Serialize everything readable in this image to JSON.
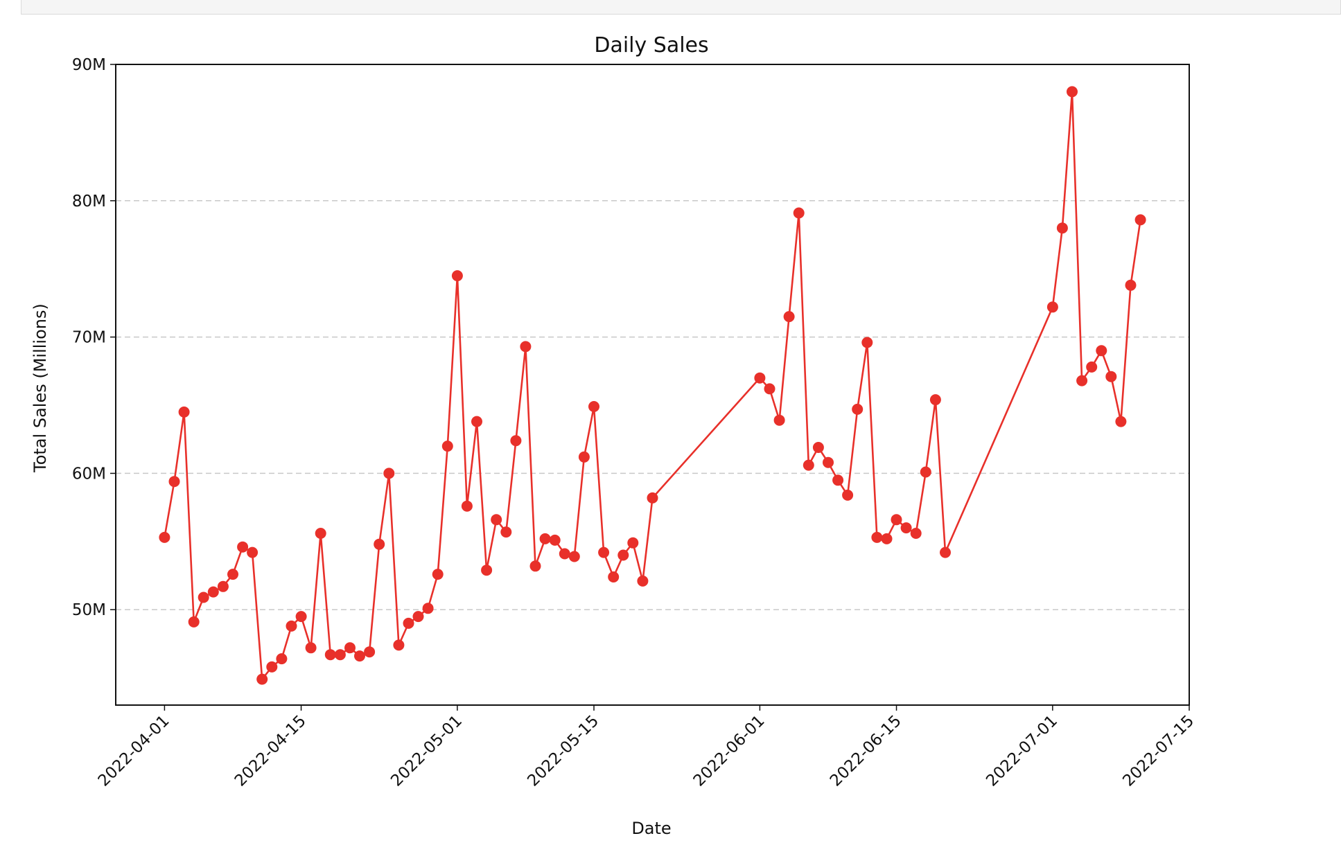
{
  "chart_data": {
    "type": "line",
    "title": "Daily Sales",
    "xlabel": "Date",
    "ylabel": "Total Sales (Millions)",
    "x_range": [
      "2022-03-27",
      "2022-07-15"
    ],
    "ylim": [
      43,
      90
    ],
    "y_ticks": [
      50,
      60,
      70,
      80,
      90
    ],
    "y_tick_labels": [
      "50M",
      "60M",
      "70M",
      "80M",
      "90M"
    ],
    "x_ticks": [
      "2022-04-01",
      "2022-04-15",
      "2022-05-01",
      "2022-05-15",
      "2022-06-01",
      "2022-06-15",
      "2022-07-01",
      "2022-07-15"
    ],
    "grid": "y-dashed",
    "color": "#e8302a",
    "series": [
      {
        "x": [
          "2022-04-01",
          "2022-04-02",
          "2022-04-03",
          "2022-04-04",
          "2022-04-05",
          "2022-04-06",
          "2022-04-07",
          "2022-04-08",
          "2022-04-09",
          "2022-04-10",
          "2022-04-11",
          "2022-04-12",
          "2022-04-13",
          "2022-04-14",
          "2022-04-15",
          "2022-04-16",
          "2022-04-17",
          "2022-04-18",
          "2022-04-19",
          "2022-04-20",
          "2022-04-21",
          "2022-04-22",
          "2022-04-23",
          "2022-04-24",
          "2022-04-25",
          "2022-04-26",
          "2022-04-27",
          "2022-04-28",
          "2022-04-29",
          "2022-04-30",
          "2022-05-01",
          "2022-05-02",
          "2022-05-03",
          "2022-05-04",
          "2022-05-05",
          "2022-05-06",
          "2022-05-07",
          "2022-05-08",
          "2022-05-09",
          "2022-05-10",
          "2022-05-11",
          "2022-05-12",
          "2022-05-13",
          "2022-05-14",
          "2022-05-15",
          "2022-05-16",
          "2022-05-17",
          "2022-05-18",
          "2022-05-19",
          "2022-05-20",
          "2022-05-21",
          "2022-06-01",
          "2022-06-02",
          "2022-06-03",
          "2022-06-04",
          "2022-06-05",
          "2022-06-06",
          "2022-06-07",
          "2022-06-08",
          "2022-06-09",
          "2022-06-10",
          "2022-06-11",
          "2022-06-12",
          "2022-06-13",
          "2022-06-14",
          "2022-06-15",
          "2022-06-16",
          "2022-06-17",
          "2022-06-18",
          "2022-06-19",
          "2022-06-20",
          "2022-07-01",
          "2022-07-02",
          "2022-07-03",
          "2022-07-04",
          "2022-07-05",
          "2022-07-06",
          "2022-07-07",
          "2022-07-08",
          "2022-07-09",
          "2022-07-10"
        ],
        "values": [
          55.3,
          59.4,
          64.5,
          49.1,
          50.9,
          51.3,
          51.7,
          52.6,
          54.6,
          54.2,
          44.9,
          45.8,
          46.4,
          48.8,
          49.5,
          47.2,
          55.6,
          46.7,
          46.7,
          47.2,
          46.6,
          46.9,
          54.8,
          60.0,
          47.4,
          49.0,
          49.5,
          50.1,
          52.6,
          62.0,
          74.5,
          57.6,
          63.8,
          52.9,
          56.6,
          55.7,
          62.4,
          69.3,
          53.2,
          55.2,
          55.1,
          54.1,
          53.9,
          61.2,
          64.9,
          54.2,
          52.4,
          54.0,
          54.9,
          52.1,
          58.2,
          67.0,
          66.2,
          63.9,
          71.5,
          79.1,
          60.6,
          61.9,
          60.8,
          59.5,
          58.4,
          64.7,
          69.6,
          55.3,
          55.2,
          56.6,
          56.0,
          55.6,
          60.1,
          65.4,
          54.2,
          72.2,
          78.0,
          88.0,
          66.8,
          67.8,
          69.0,
          67.1,
          63.8,
          73.8,
          78.6
        ]
      }
    ]
  }
}
